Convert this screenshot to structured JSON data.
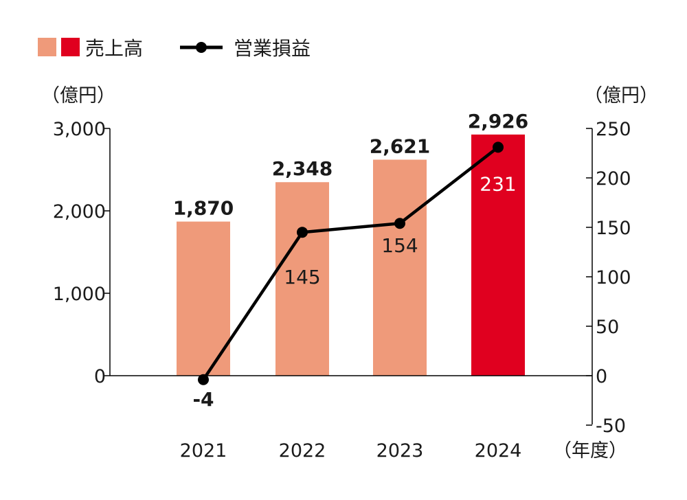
{
  "chart_data": {
    "type": "bar+line",
    "categories": [
      "2021",
      "2022",
      "2023",
      "2024"
    ],
    "xlabel": "（年度）",
    "series": [
      {
        "name": "売上高",
        "type": "bar",
        "axis": "left",
        "values": [
          1870,
          2348,
          2621,
          2926
        ],
        "labels": [
          "1,870",
          "2,348",
          "2,621",
          "2,926"
        ],
        "colors": [
          "#ef9a7a",
          "#ef9a7a",
          "#ef9a7a",
          "#e0001f"
        ]
      },
      {
        "name": "営業損益",
        "type": "line",
        "axis": "right",
        "values": [
          -4,
          145,
          154,
          231
        ],
        "labels": [
          "-4",
          "145",
          "154",
          "231"
        ],
        "color": "#000000"
      }
    ],
    "y_left": {
      "unit": "（億円）",
      "ylim": [
        0,
        3000
      ],
      "ticks": [
        0,
        1000,
        2000,
        3000
      ],
      "tick_labels": [
        "0",
        "1,000",
        "2,000",
        "3,000"
      ]
    },
    "y_right": {
      "unit": "（億円）",
      "ylim": [
        -50,
        250
      ],
      "ticks": [
        -50,
        0,
        50,
        100,
        150,
        200,
        250
      ],
      "tick_labels": [
        "-50",
        "0",
        "50",
        "100",
        "150",
        "200",
        "250"
      ]
    },
    "legend": {
      "placement": "top-left",
      "swatch_colors": [
        "#ef9a7a",
        "#e0001f"
      ]
    },
    "grid": false
  }
}
